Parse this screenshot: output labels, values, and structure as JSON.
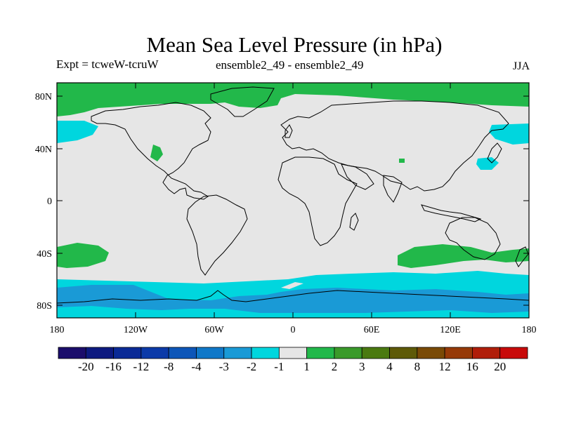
{
  "title": "Mean Sea Level Pressure (in hPa)",
  "experiment": "Expt = tcweW-tcruW",
  "ensembles": "ensemble2_49 - ensemble2_49",
  "season": "JJA",
  "lat_ticks": [
    "80N",
    "40N",
    "0",
    "40S",
    "80S"
  ],
  "lon_ticks": [
    "180",
    "120W",
    "60W",
    "0",
    "60E",
    "120E",
    "180"
  ],
  "colorbar": {
    "colors": [
      "#1b0d6b",
      "#0d1a80",
      "#0a2a96",
      "#0b3aa8",
      "#0d56b8",
      "#1078c8",
      "#1a9ad6",
      "#00d6de",
      "#e6e6e6",
      "#22b84a",
      "#3a9a2a",
      "#4a7a10",
      "#5e5a08",
      "#7a4a06",
      "#963a08",
      "#b01e0a",
      "#c80a0a"
    ],
    "labels": [
      "-20",
      "-16",
      "-12",
      "-8",
      "-4",
      "-3",
      "-2",
      "-1",
      "1",
      "2",
      "3",
      "4",
      "8",
      "12",
      "16",
      "20"
    ]
  },
  "map_colors": {
    "neutral": "#e6e6e6",
    "pos1": "#22b84a",
    "neg1": "#00d6de",
    "neg2": "#1a9ad6"
  }
}
